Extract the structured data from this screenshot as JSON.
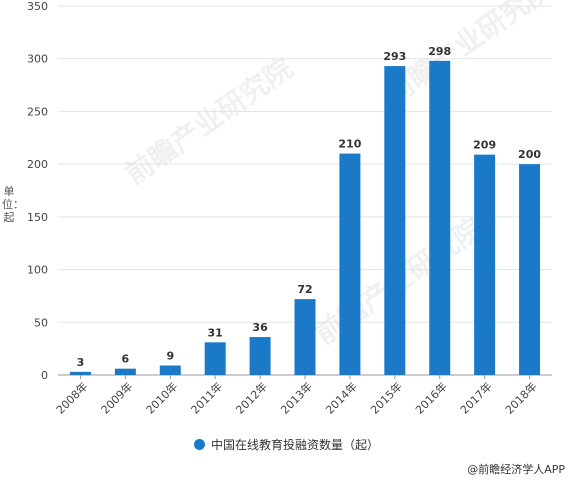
{
  "chart_data": {
    "type": "bar",
    "categories": [
      "2008年",
      "2009年",
      "2010年",
      "2011年",
      "2012年",
      "2013年",
      "2014年",
      "2015年",
      "2016年",
      "2017年",
      "2018年"
    ],
    "series": [
      {
        "name": "中国在线教育投融资数量（起）",
        "values": [
          3,
          6,
          9,
          31,
          36,
          72,
          210,
          293,
          298,
          209,
          200
        ],
        "color": "#1a7ac7"
      }
    ],
    "ylabel": "单位：起",
    "ylim": [
      0,
      350
    ],
    "yticks": [
      0,
      50,
      100,
      150,
      200,
      250,
      300,
      350
    ],
    "grid": true,
    "legend_position": "bottom"
  },
  "credit": "@前瞻经济学人APP",
  "watermark_text": "前瞻产业研究院"
}
